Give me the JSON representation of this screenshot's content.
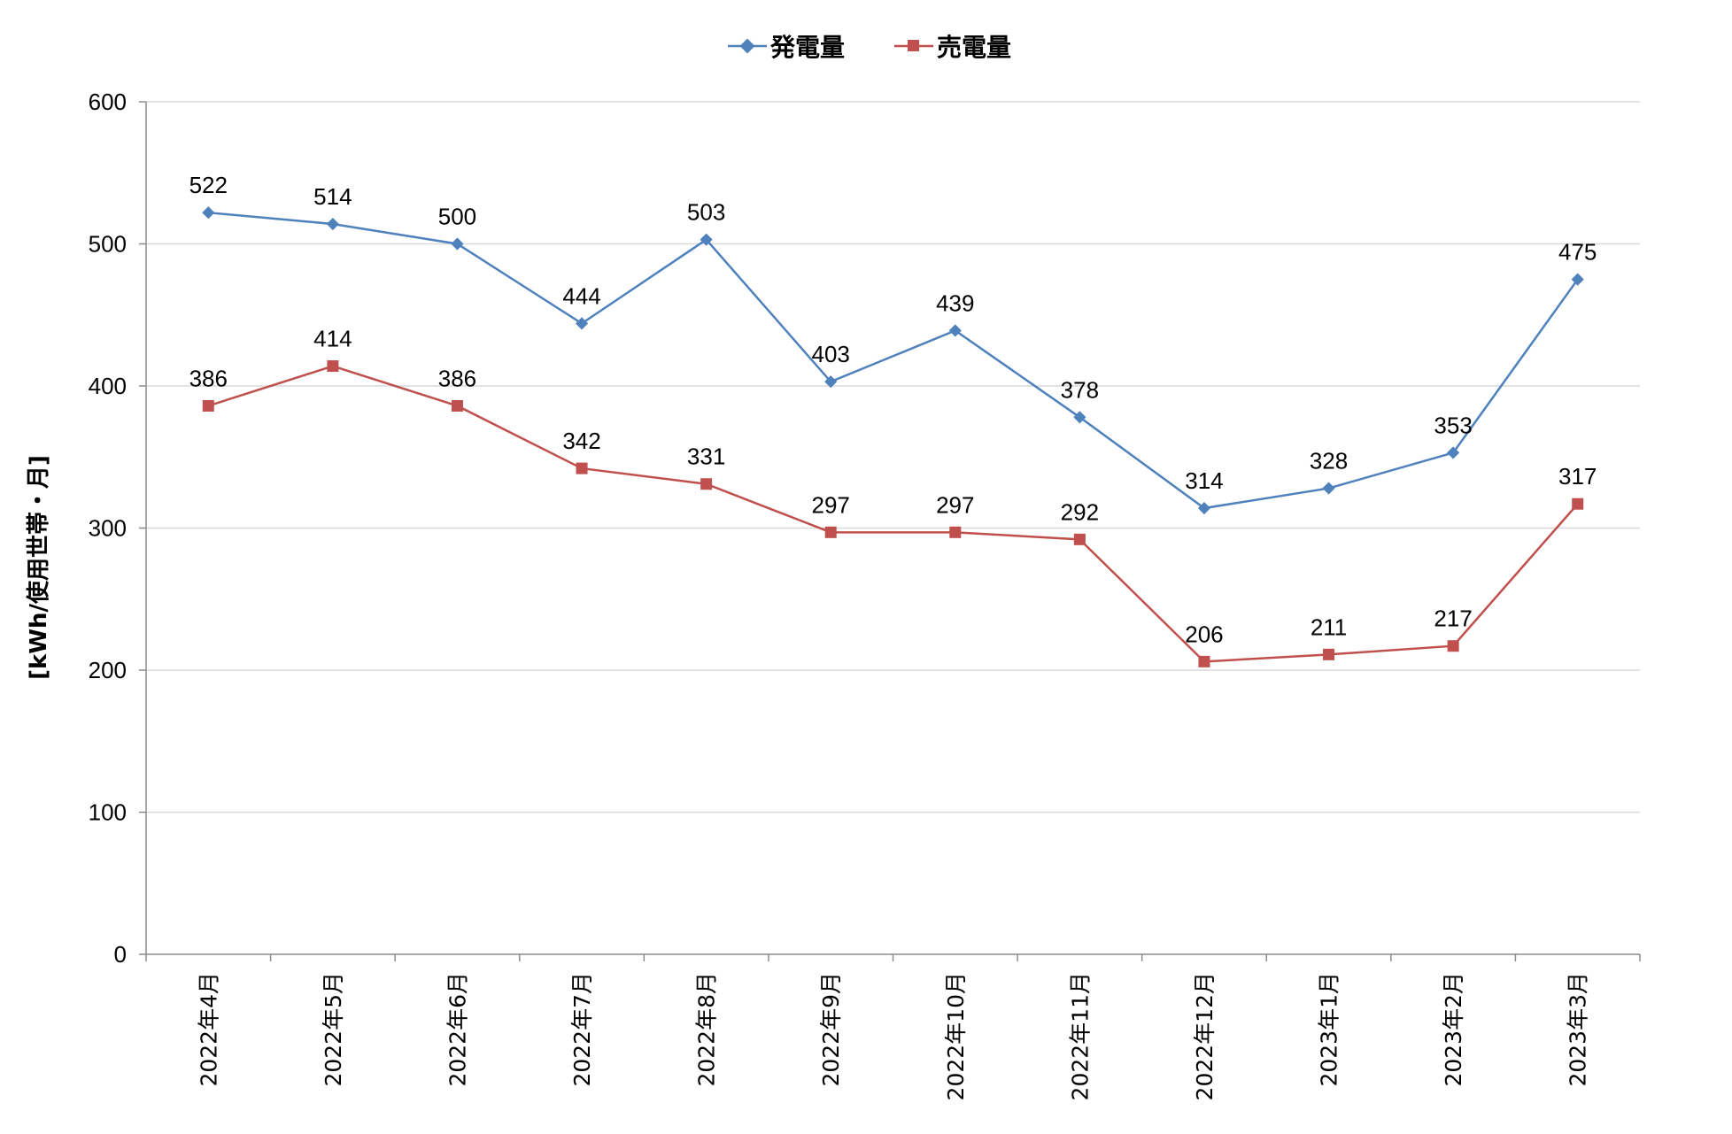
{
  "chart_data": {
    "type": "line",
    "title": "",
    "xlabel": "",
    "ylabel": "[kWh/使用世帯・月]",
    "ylim": [
      0,
      600
    ],
    "yticks": [
      "0",
      "100",
      "200",
      "300",
      "400",
      "500",
      "600"
    ],
    "grid": true,
    "legend_position": "top-center",
    "categories": [
      "2022年4月",
      "2022年5月",
      "2022年6月",
      "2022年7月",
      "2022年8月",
      "2022年9月",
      "2022年10月",
      "2022年11月",
      "2022年12月",
      "2023年1月",
      "2023年2月",
      "2023年3月"
    ],
    "series": [
      {
        "name": "発電量",
        "color": "#4F81BD",
        "marker": "diamond",
        "values": [
          522,
          514,
          500,
          444,
          503,
          403,
          439,
          378,
          314,
          328,
          353,
          475
        ]
      },
      {
        "name": "売電量",
        "color": "#C0504D",
        "marker": "square",
        "values": [
          386,
          414,
          386,
          342,
          331,
          297,
          297,
          292,
          206,
          211,
          217,
          317
        ]
      }
    ]
  }
}
